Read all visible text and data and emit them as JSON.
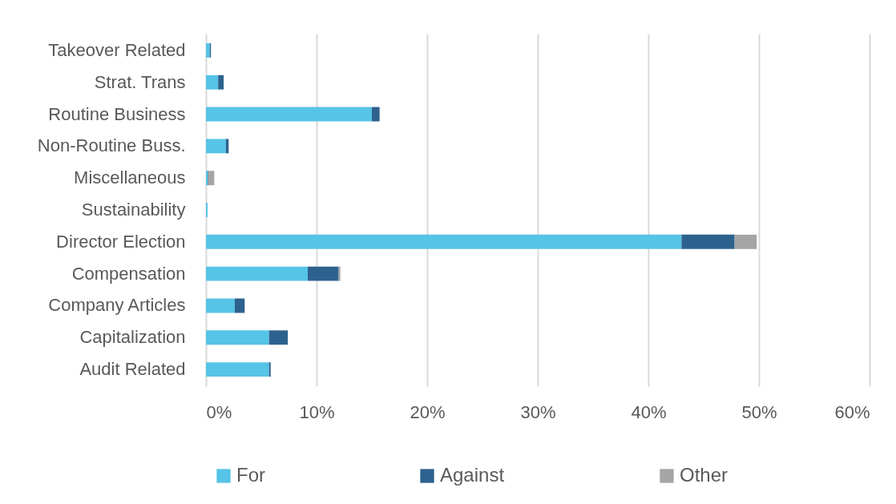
{
  "chart_data": {
    "type": "bar",
    "orientation": "horizontal",
    "stacked": true,
    "categories": [
      "Takeover Related",
      "Strat. Trans",
      "Routine Business",
      "Non-Routine Buss.",
      "Miscellaneous",
      "Sustainability",
      "Director Election",
      "Compensation",
      "Company Articles",
      "Capitalization",
      "Audit Related"
    ],
    "series": [
      {
        "name": "For",
        "color": "#56c4e6",
        "values": [
          0.35,
          1.1,
          15.0,
          1.8,
          0.15,
          0.15,
          43.0,
          9.2,
          2.6,
          5.7,
          5.7
        ]
      },
      {
        "name": "Against",
        "color": "#2e628e",
        "values": [
          0.1,
          0.5,
          0.7,
          0.25,
          0.05,
          null,
          4.8,
          2.8,
          0.9,
          1.7,
          0.15
        ]
      },
      {
        "name": "Other",
        "color": "#a5a5a5",
        "values": [
          null,
          null,
          null,
          null,
          0.55,
          null,
          2.0,
          0.15,
          null,
          null,
          null
        ]
      }
    ],
    "xlim": [
      0,
      60
    ],
    "xticks": [
      {
        "value": 0,
        "label": "0%"
      },
      {
        "value": 10,
        "label": "10%"
      },
      {
        "value": 20,
        "label": "20%"
      },
      {
        "value": 30,
        "label": "30%"
      },
      {
        "value": 40,
        "label": "40%"
      },
      {
        "value": 50,
        "label": "50%"
      },
      {
        "value": 60,
        "label": "60%"
      }
    ],
    "grid": "x",
    "legend": "bottom"
  }
}
